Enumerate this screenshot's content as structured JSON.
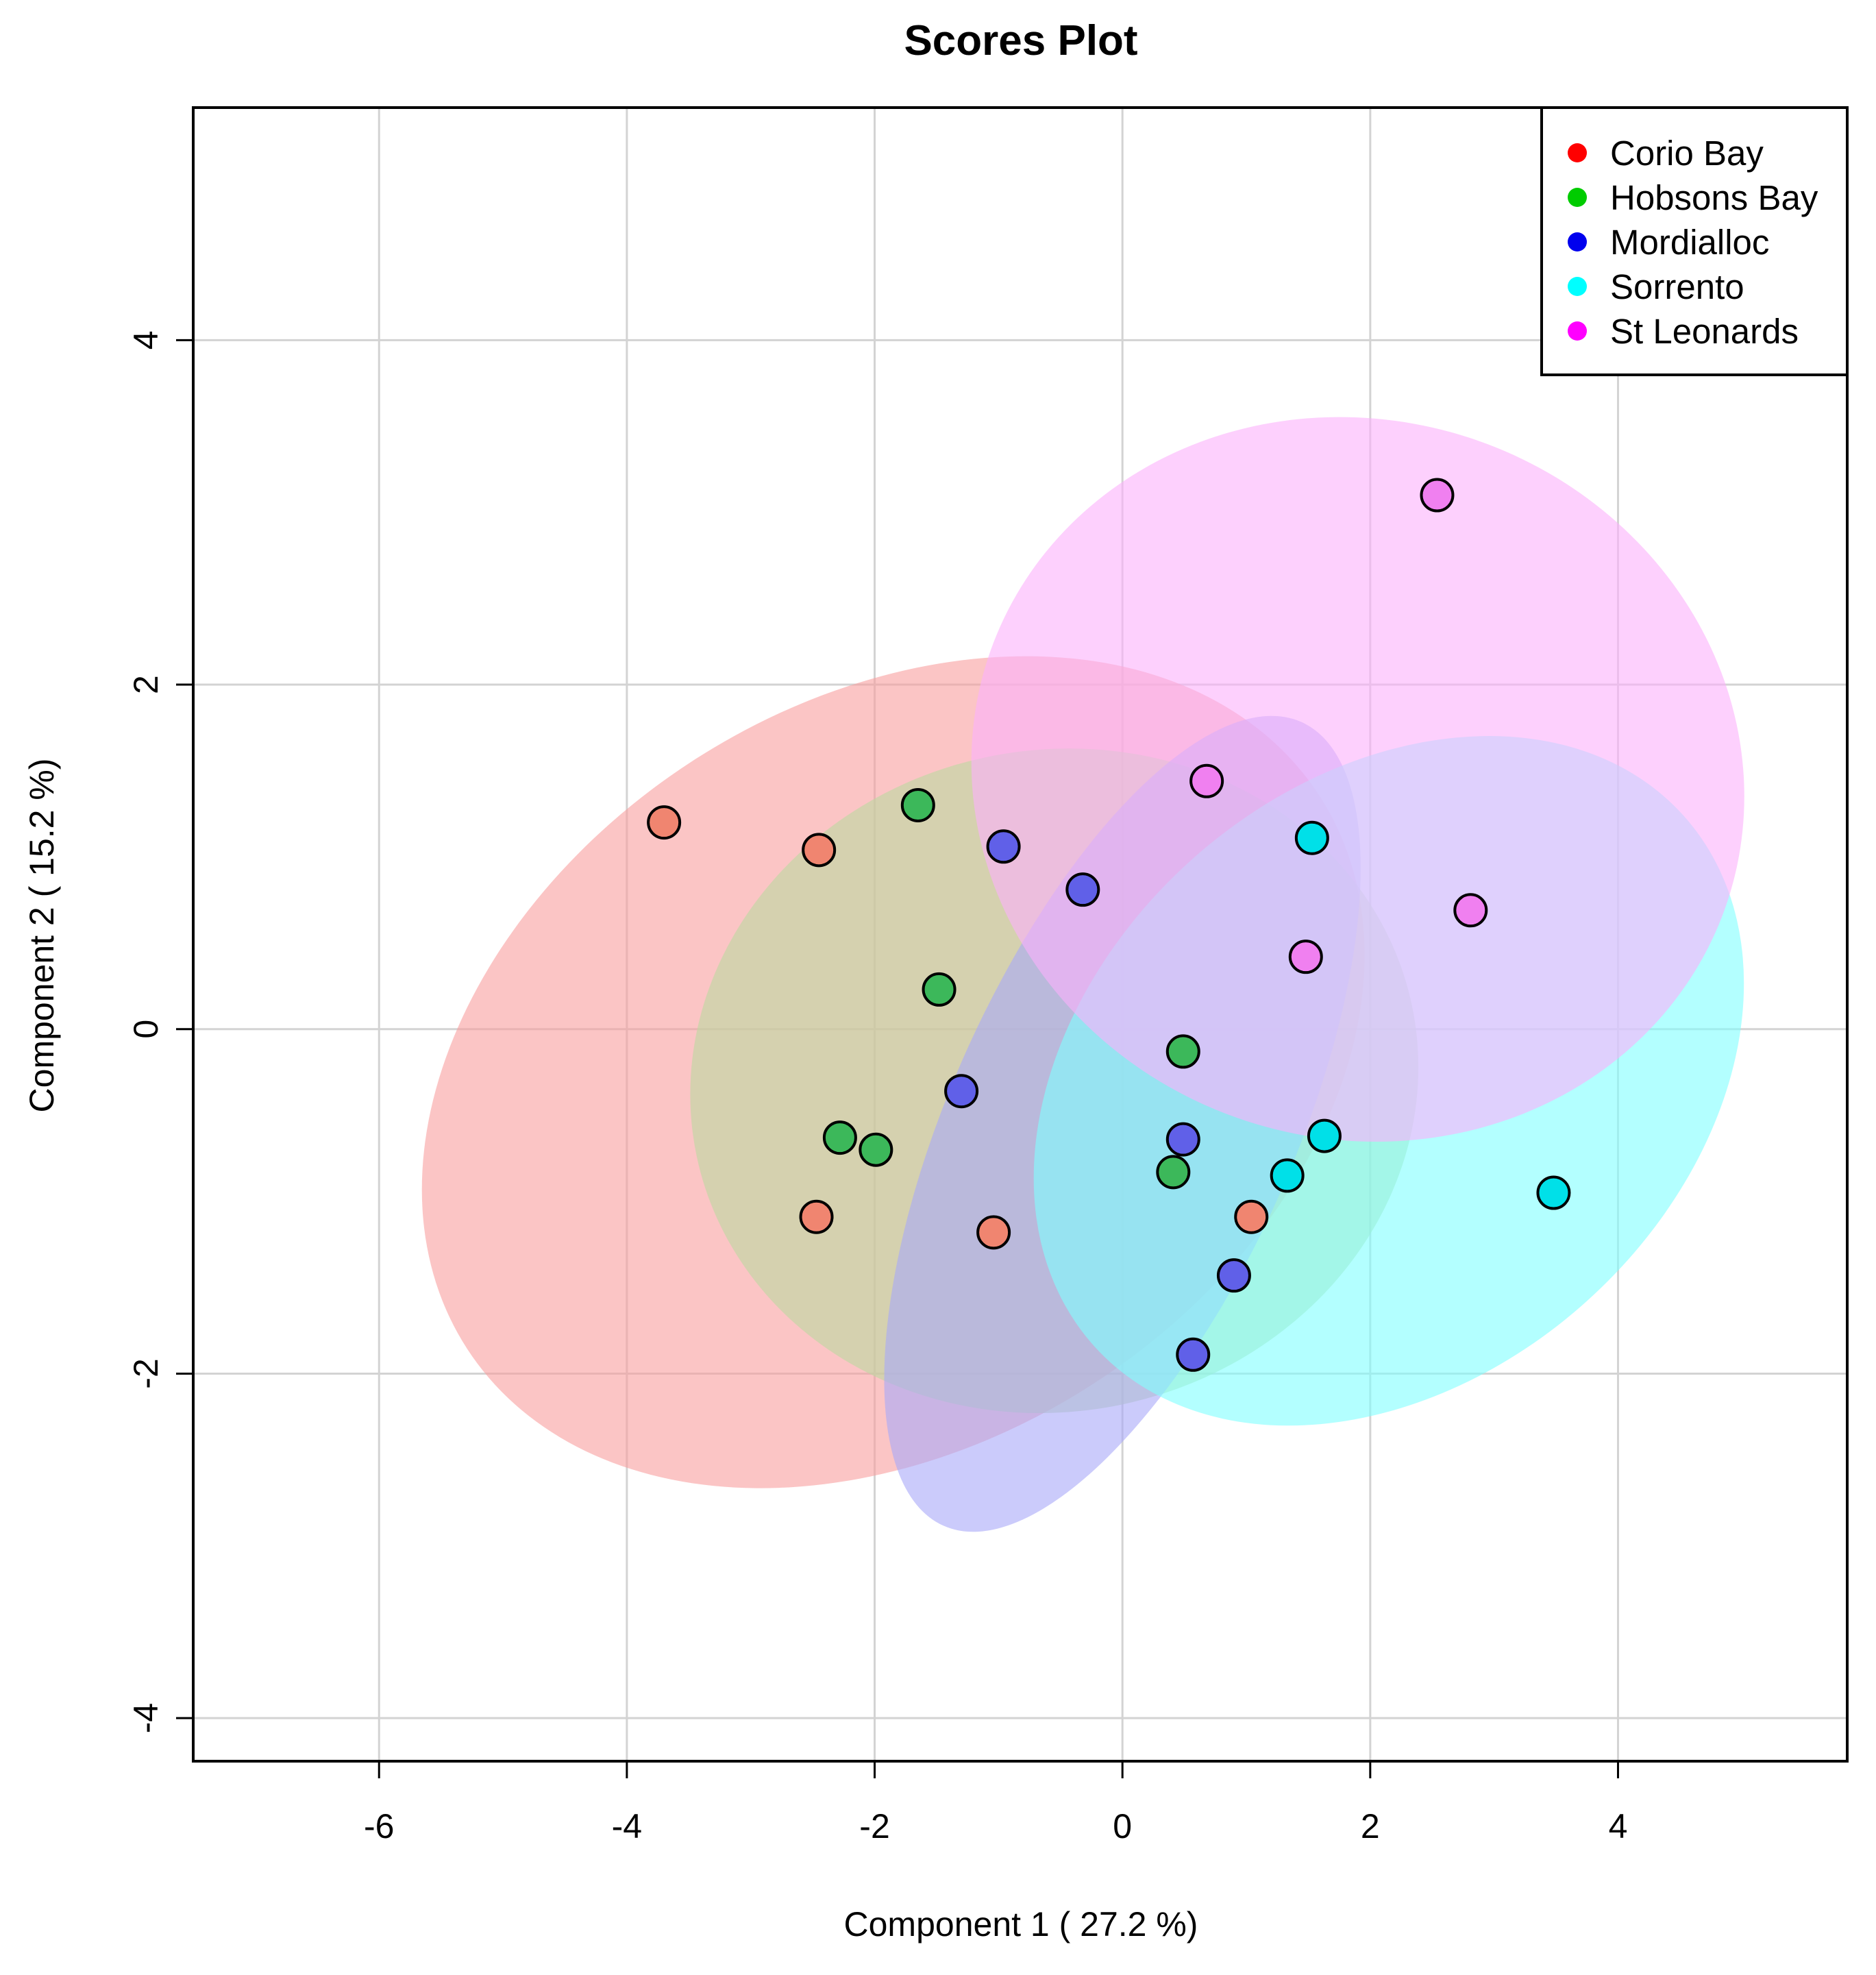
{
  "chart_data": {
    "type": "scatter",
    "title": "Scores Plot",
    "xlabel": "Component 1 ( 27.2 %)",
    "ylabel": "Component 2 ( 15.2 %)",
    "xlim": [
      -7.5,
      5.85
    ],
    "ylim": [
      -4.25,
      5.35
    ],
    "x_ticks": [
      -6,
      -4,
      -2,
      0,
      2,
      4
    ],
    "y_ticks": [
      -4,
      -2,
      0,
      2,
      4
    ],
    "grid": true,
    "legend_position": "top-right",
    "series": [
      {
        "name": "Corio Bay",
        "color": "#ff0000",
        "fill_color": "#f08570",
        "ellipse_color": "#f89f9f",
        "ellipse": {
          "cx": -1.85,
          "cy": -0.25,
          "rx": 4.1,
          "ry": 2.15,
          "angle_deg": -33
        },
        "points": [
          {
            "x": -3.7,
            "y": 1.2
          },
          {
            "x": -2.45,
            "y": 1.04
          },
          {
            "x": -2.47,
            "y": -1.09
          },
          {
            "x": -1.04,
            "y": -1.18
          },
          {
            "x": 1.04,
            "y": -1.09
          }
        ]
      },
      {
        "name": "Hobsons Bay",
        "color": "#00cc00",
        "fill_color": "#3cb85a",
        "ellipse_color": "#bcd9a0",
        "ellipse": {
          "cx": -0.55,
          "cy": -0.3,
          "rx": 2.95,
          "ry": 1.92,
          "angle_deg": -12
        },
        "points": [
          {
            "x": -1.65,
            "y": 1.3
          },
          {
            "x": -1.48,
            "y": 0.23
          },
          {
            "x": -2.28,
            "y": -0.63
          },
          {
            "x": -1.99,
            "y": -0.7
          },
          {
            "x": 0.49,
            "y": -0.13
          },
          {
            "x": 0.41,
            "y": -0.83
          }
        ]
      },
      {
        "name": "Mordialloc",
        "color": "#0000ee",
        "fill_color": "#6060e8",
        "ellipse_color": "#a8a8f8",
        "ellipse": {
          "cx": 0.0,
          "cy": -0.55,
          "rx": 3.55,
          "ry": 1.0,
          "angle_deg": -66
        },
        "points": [
          {
            "x": -0.96,
            "y": 1.06
          },
          {
            "x": -0.32,
            "y": 0.81
          },
          {
            "x": -1.3,
            "y": -0.36
          },
          {
            "x": 0.49,
            "y": -0.64
          },
          {
            "x": 0.9,
            "y": -1.43
          },
          {
            "x": 0.57,
            "y": -1.89
          }
        ]
      },
      {
        "name": "Sorrento",
        "color": "#00ffff",
        "fill_color": "#00e0e8",
        "ellipse_color": "#80ffff",
        "ellipse": {
          "cx": 2.15,
          "cy": -0.3,
          "rx": 3.2,
          "ry": 1.72,
          "angle_deg": -42
        },
        "points": [
          {
            "x": 1.53,
            "y": 1.11
          },
          {
            "x": 1.63,
            "y": -0.62
          },
          {
            "x": 1.33,
            "y": -0.85
          },
          {
            "x": 3.48,
            "y": -0.95
          }
        ]
      },
      {
        "name": "St Leonards",
        "color": "#ff00ff",
        "fill_color": "#f080f0",
        "ellipse_color": "#fbb0fb",
        "ellipse": {
          "cx": 1.9,
          "cy": 1.45,
          "rx": 2.9,
          "ry": 2.26,
          "angle_deg": -72
        },
        "points": [
          {
            "x": 2.54,
            "y": 3.1
          },
          {
            "x": 0.68,
            "y": 1.44
          },
          {
            "x": 2.81,
            "y": 0.69
          },
          {
            "x": 1.48,
            "y": 0.42
          }
        ]
      }
    ]
  }
}
